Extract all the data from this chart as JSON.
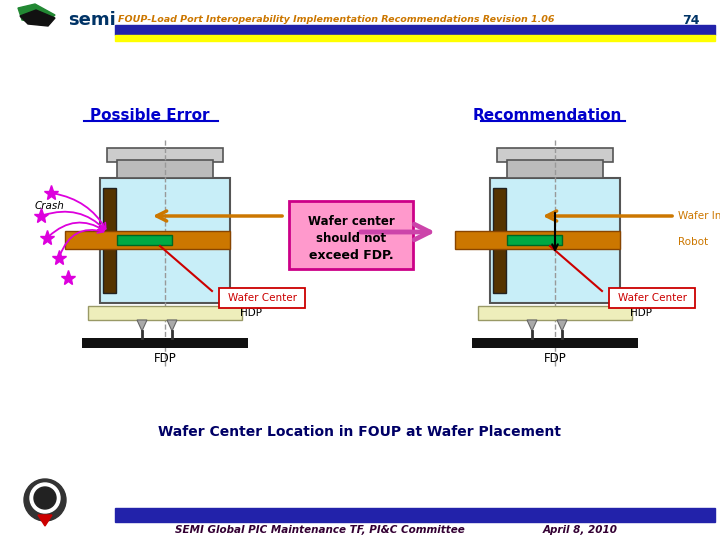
{
  "title_header": "FOUP-Load Port Interoperability Implementation Recommendations Revision 1.06",
  "page_num": "74",
  "header_bar_color": "#2222aa",
  "header_yellow_color": "#ffff00",
  "footer_bar_color": "#2222aa",
  "footer_text": "SEMI Global PIC Maintenance TF, PI&C Committee",
  "footer_date": "April 8, 2010",
  "left_title": "Possible Error",
  "right_title": "Recommendation",
  "center_text_line1": "Wafer center",
  "center_text_line2": "should not",
  "center_text_line3": "exceed FDP.",
  "bottom_title": "Wafer Center Location in FOUP at Wafer Placement",
  "foup_fill": "#c8eef8",
  "robot_color": "#cc7700",
  "green_bar_color": "#00aa44",
  "dark_brown": "#553300",
  "crash_color": "#dd00dd",
  "hdp_color": "#eeeebb",
  "wafer_insert_color": "#cc7700",
  "wafer_center_color": "#cc0000",
  "robot_label_color": "#cc7700",
  "background": "#ffffff"
}
